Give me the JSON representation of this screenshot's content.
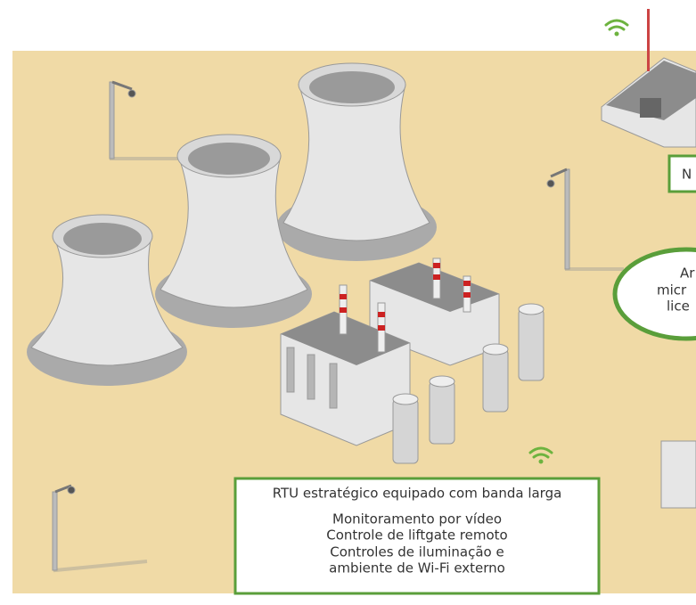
{
  "top_box": {
    "label": "N"
  },
  "ellipse": {
    "lines": [
      "Ar",
      "micr",
      "lice"
    ]
  },
  "rtu_box": {
    "title": "RTU estratégico equipado com banda larga",
    "items": [
      "Monitoramento por vídeo",
      "Controle de liftgate remoto",
      "Controles de iluminação e",
      "ambiente de Wi-Fi externo"
    ]
  }
}
